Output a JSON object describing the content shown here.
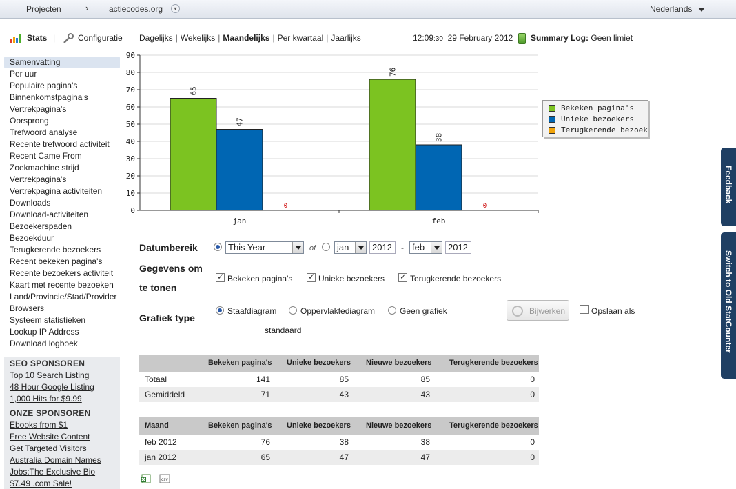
{
  "topbar": {
    "projects": "Projecten",
    "separator": "›",
    "site": "actiecodes.org",
    "language": "Nederlands"
  },
  "nav": {
    "stats": "Stats",
    "pipe": "|",
    "config": "Configuratie"
  },
  "periods": [
    {
      "label": "Dagelijks",
      "active": false
    },
    {
      "label": "Wekelijks",
      "active": false
    },
    {
      "label": "Maandelijks",
      "active": true
    },
    {
      "label": "Per kwartaal",
      "active": false
    },
    {
      "label": "Jaarlijks",
      "active": false
    }
  ],
  "clock": {
    "time": "12:09",
    "seconds": ":30",
    "date": "29 February 2012"
  },
  "summary": {
    "label": "Summary Log:",
    "value": "Geen limiet"
  },
  "sidebar": {
    "items": [
      "Samenvatting",
      "Per uur",
      "Populaire pagina's",
      "Binnenkomstpagina's",
      "Vertrekpagina's",
      "Oorsprong",
      "Trefwoord analyse",
      "Recente trefwoord activiteit",
      "Recent Came From",
      "Zoekmachine strijd",
      "Vertrekpagina's",
      "Vertrekpagina activiteiten",
      "Downloads",
      "Download-activiteiten",
      "Bezoekerspaden",
      "Bezoekduur",
      "Terugkerende bezoekers",
      "Recent bekeken pagina's",
      "Recente bezoekers activiteit",
      "Kaart met recente bezoeken",
      "Land/Provincie/Stad/Provider",
      "Browsers",
      "Systeem statistieken",
      "Lookup IP Address",
      "Download logboek"
    ],
    "active_index": 0
  },
  "sponsors": {
    "seo_title": "SEO SPONSOREN",
    "seo_links": [
      "Top 10 Search Listing",
      "48 Hour Google Listing",
      "1,000 Hits for $9.99"
    ],
    "our_title": "ONZE SPONSOREN",
    "our_links": [
      "Ebooks from $1",
      "Free Website Content",
      "Get Targeted Visitors",
      "Australia Domain Names",
      "Jobs:The Exclusive Bio",
      "$7.49 .com Sale!"
    ]
  },
  "chart_data": {
    "type": "bar",
    "categories": [
      "jan",
      "feb"
    ],
    "series": [
      {
        "name": "Bekeken pagina's",
        "values": [
          65,
          76
        ],
        "color": "#7cc321"
      },
      {
        "name": "Unieke bezoekers",
        "values": [
          47,
          38
        ],
        "color": "#0066b3"
      },
      {
        "name": "Terugkerende bezoekers",
        "values": [
          0,
          0
        ],
        "color": "#f0a30a"
      }
    ],
    "ylim": [
      0,
      90
    ],
    "yticks": [
      0,
      10,
      20,
      30,
      40,
      50,
      60,
      70,
      80,
      90
    ],
    "grid": true,
    "legend_position": "right"
  },
  "form": {
    "date_range_label": "Datumbereik",
    "range_select": "This Year",
    "of_label": "of",
    "from_month": "jan",
    "from_year": "2012",
    "dash": "-",
    "to_month": "feb",
    "to_year": "2012",
    "data_label_1": "Gegevens om",
    "data_label_2": "te tonen",
    "checks": [
      "Bekeken pagina's",
      "Unieke bezoekers",
      "Terugkerende bezoekers"
    ],
    "graph_label": "Grafiek type",
    "graph_types": [
      "Staafdiagram",
      "Oppervlaktediagram",
      "Geen grafiek"
    ],
    "graph_default": "standaard",
    "update_button": "Bijwerken",
    "save_label": "Opslaan als"
  },
  "summary_table": {
    "columns": [
      "",
      "Bekeken pagina's",
      "Unieke bezoekers",
      "Nieuwe bezoekers",
      "Terugkerende bezoekers"
    ],
    "rows": [
      [
        "Totaal",
        "141",
        "85",
        "85",
        "0"
      ],
      [
        "Gemiddeld",
        "71",
        "43",
        "43",
        "0"
      ]
    ]
  },
  "month_table": {
    "columns": [
      "Maand",
      "Bekeken pagina's",
      "Unieke bezoekers",
      "Nieuwe bezoekers",
      "Terugkerende bezoekers"
    ],
    "rows": [
      [
        "feb 2012",
        "76",
        "38",
        "38",
        "0"
      ],
      [
        "jan 2012",
        "65",
        "47",
        "47",
        "0"
      ]
    ]
  },
  "export": {
    "csv_label": "csv"
  },
  "sidetabs": {
    "feedback": "Feedback",
    "switch": "Switch to Old StatCounter"
  }
}
